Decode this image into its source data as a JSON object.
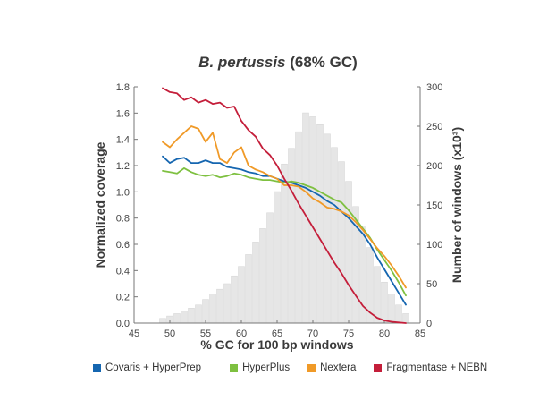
{
  "chart_data": {
    "type": "line",
    "title_italic": "B. pertussis",
    "title_rest": "(68% GC)",
    "xlabel": "% GC for 100 bp windows",
    "ylabel": "Normalized coverage",
    "y2label": "Number of windows (x10³)",
    "xlim": [
      45,
      85
    ],
    "ylim": [
      0,
      1.8
    ],
    "y2lim": [
      0,
      300
    ],
    "x_ticks": [
      45,
      50,
      55,
      60,
      65,
      70,
      75,
      80,
      85
    ],
    "y_ticks": [
      "0.0",
      "0.2",
      "0.4",
      "0.6",
      "0.8",
      "1.0",
      "1.2",
      "1.4",
      "1.6",
      "1.8"
    ],
    "y2_ticks": [
      0,
      50,
      100,
      150,
      200,
      250,
      300
    ],
    "histogram": {
      "name": "Number of windows",
      "color": "#e6e6e6",
      "x": [
        49,
        50,
        51,
        52,
        53,
        54,
        55,
        56,
        57,
        58,
        59,
        60,
        61,
        62,
        63,
        64,
        65,
        66,
        67,
        68,
        69,
        70,
        71,
        72,
        73,
        74,
        75,
        76,
        77,
        78,
        79,
        80,
        81,
        82,
        83
      ],
      "values": [
        6,
        9,
        12,
        15,
        19,
        23,
        30,
        37,
        43,
        50,
        60,
        72,
        87,
        103,
        120,
        140,
        167,
        202,
        222,
        243,
        267,
        262,
        252,
        240,
        223,
        205,
        180,
        148,
        122,
        96,
        72,
        52,
        37,
        23,
        12
      ]
    },
    "series": [
      {
        "name": "Covaris + HyperPrep",
        "color": "#1566b0",
        "x": [
          49,
          50,
          51,
          52,
          53,
          54,
          55,
          56,
          57,
          58,
          59,
          60,
          61,
          62,
          63,
          64,
          65,
          66,
          67,
          68,
          69,
          70,
          71,
          72,
          73,
          74,
          75,
          76,
          77,
          78,
          79,
          80,
          81,
          82,
          83
        ],
        "values": [
          1.27,
          1.22,
          1.25,
          1.26,
          1.22,
          1.22,
          1.24,
          1.22,
          1.22,
          1.19,
          1.18,
          1.17,
          1.15,
          1.14,
          1.12,
          1.12,
          1.1,
          1.08,
          1.07,
          1.05,
          1.03,
          1.0,
          0.97,
          0.93,
          0.9,
          0.85,
          0.8,
          0.74,
          0.68,
          0.6,
          0.5,
          0.41,
          0.32,
          0.23,
          0.14
        ]
      },
      {
        "name": "HyperPlus",
        "color": "#7ec040",
        "x": [
          49,
          50,
          51,
          52,
          53,
          54,
          55,
          56,
          57,
          58,
          59,
          60,
          61,
          62,
          63,
          64,
          65,
          66,
          67,
          68,
          69,
          70,
          71,
          72,
          73,
          74,
          75,
          76,
          77,
          78,
          79,
          80,
          81,
          82,
          83
        ],
        "values": [
          1.16,
          1.15,
          1.14,
          1.18,
          1.15,
          1.13,
          1.12,
          1.13,
          1.11,
          1.12,
          1.14,
          1.13,
          1.11,
          1.1,
          1.09,
          1.09,
          1.08,
          1.07,
          1.08,
          1.07,
          1.05,
          1.03,
          1.0,
          0.97,
          0.94,
          0.92,
          0.86,
          0.79,
          0.72,
          0.65,
          0.56,
          0.48,
          0.4,
          0.31,
          0.21
        ]
      },
      {
        "name": "Nextera",
        "color": "#f09a28",
        "x": [
          49,
          50,
          51,
          52,
          53,
          54,
          55,
          56,
          57,
          58,
          59,
          60,
          61,
          62,
          63,
          64,
          65,
          66,
          67,
          68,
          69,
          70,
          71,
          72,
          73,
          74,
          75,
          76,
          77,
          78,
          79,
          80,
          81,
          82,
          83
        ],
        "values": [
          1.38,
          1.34,
          1.4,
          1.45,
          1.5,
          1.48,
          1.38,
          1.45,
          1.25,
          1.22,
          1.3,
          1.34,
          1.2,
          1.17,
          1.15,
          1.12,
          1.1,
          1.05,
          1.05,
          1.04,
          1.0,
          0.95,
          0.92,
          0.88,
          0.87,
          0.85,
          0.82,
          0.77,
          0.71,
          0.64,
          0.57,
          0.51,
          0.44,
          0.36,
          0.27
        ]
      },
      {
        "name": "Fragmentase + NEBN",
        "color": "#c41e3a",
        "x": [
          49,
          50,
          51,
          52,
          53,
          54,
          55,
          56,
          57,
          58,
          59,
          60,
          61,
          62,
          63,
          64,
          65,
          66,
          67,
          68,
          69,
          70,
          71,
          72,
          73,
          74,
          75,
          76,
          77,
          78,
          79,
          80,
          81,
          82,
          83
        ],
        "values": [
          1.79,
          1.76,
          1.75,
          1.7,
          1.72,
          1.68,
          1.7,
          1.67,
          1.68,
          1.64,
          1.65,
          1.54,
          1.47,
          1.42,
          1.33,
          1.28,
          1.2,
          1.1,
          1.01,
          0.91,
          0.82,
          0.73,
          0.64,
          0.55,
          0.46,
          0.38,
          0.29,
          0.21,
          0.13,
          0.08,
          0.04,
          0.02,
          0.01,
          0.005,
          0.0
        ]
      }
    ],
    "legend_position": "bottom"
  }
}
